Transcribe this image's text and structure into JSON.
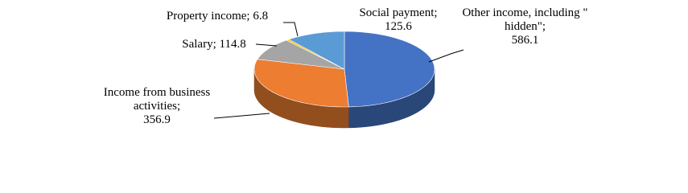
{
  "chart_data": {
    "type": "pie3d",
    "categories": [
      "Other income, including \" hidden\";",
      "Income from business activities;",
      "Salary;",
      "Property income;",
      "Social payment;"
    ],
    "values": [
      586.1,
      356.9,
      114.8,
      6.8,
      125.6
    ],
    "colors": [
      "#4472c4",
      "#ed7d31",
      "#a5a5a5",
      "#ffc000",
      "#5b9bd5"
    ]
  }
}
